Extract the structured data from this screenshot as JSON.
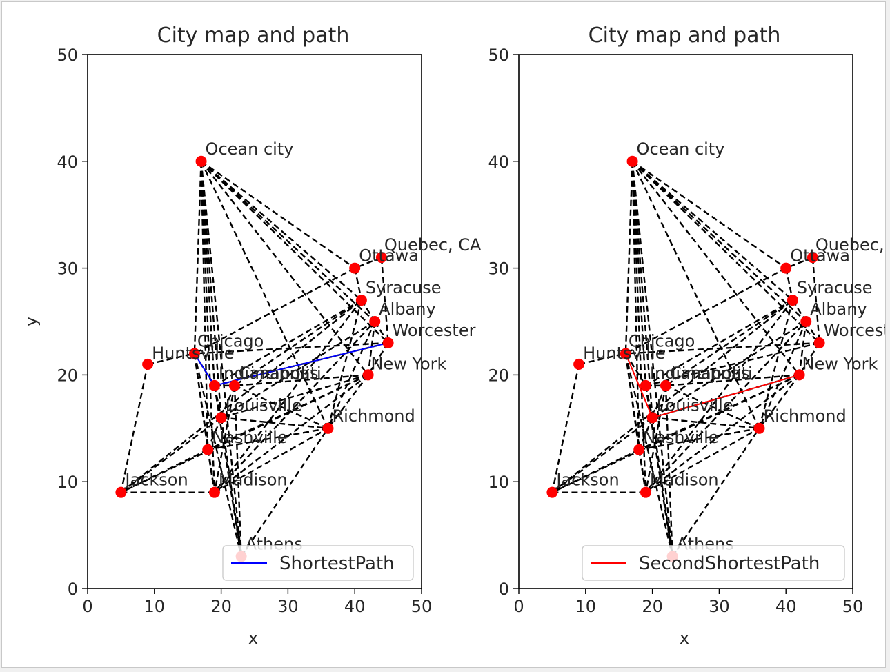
{
  "chart_data": {
    "type": "scatter",
    "cities": [
      {
        "name": "Ocean city",
        "x": 17,
        "y": 40
      },
      {
        "name": "Quebec, CA",
        "x": 44,
        "y": 31
      },
      {
        "name": "Ottawa",
        "x": 40,
        "y": 30
      },
      {
        "name": "Syracuse",
        "x": 41,
        "y": 27
      },
      {
        "name": "Albany",
        "x": 43,
        "y": 25
      },
      {
        "name": "Worcester",
        "x": 45,
        "y": 23
      },
      {
        "name": "New York",
        "x": 42,
        "y": 20
      },
      {
        "name": "Chicago",
        "x": 16,
        "y": 22
      },
      {
        "name": "Huntsville",
        "x": 9,
        "y": 21
      },
      {
        "name": "Indianapolis",
        "x": 19,
        "y": 19
      },
      {
        "name": "Cincinnati",
        "x": 22,
        "y": 19
      },
      {
        "name": "Louisville",
        "x": 20,
        "y": 16
      },
      {
        "name": "Richmond",
        "x": 36,
        "y": 15
      },
      {
        "name": "Nashville",
        "x": 18,
        "y": 13
      },
      {
        "name": "Jackson",
        "x": 5,
        "y": 9
      },
      {
        "name": "Madison",
        "x": 19,
        "y": 9
      },
      {
        "name": "Athens",
        "x": 23,
        "y": 3
      }
    ],
    "edges": [
      [
        "Ocean city",
        "Chicago"
      ],
      [
        "Ocean city",
        "Indianapolis"
      ],
      [
        "Ocean city",
        "Louisville"
      ],
      [
        "Ocean city",
        "Nashville"
      ],
      [
        "Ocean city",
        "Madison"
      ],
      [
        "Ocean city",
        "Ottawa"
      ],
      [
        "Ocean city",
        "Syracuse"
      ],
      [
        "Ocean city",
        "Albany"
      ],
      [
        "Ocean city",
        "Worcester"
      ],
      [
        "Ocean city",
        "New York"
      ],
      [
        "Ocean city",
        "Richmond"
      ],
      [
        "Ocean city",
        "Athens"
      ],
      [
        "Quebec, CA",
        "Ottawa"
      ],
      [
        "Quebec, CA",
        "Worcester"
      ],
      [
        "Ottawa",
        "Syracuse"
      ],
      [
        "Ottawa",
        "Chicago"
      ],
      [
        "Syracuse",
        "Albany"
      ],
      [
        "Syracuse",
        "Indianapolis"
      ],
      [
        "Syracuse",
        "Cincinnati"
      ],
      [
        "Syracuse",
        "Richmond"
      ],
      [
        "Syracuse",
        "Madison"
      ],
      [
        "Albany",
        "Worcester"
      ],
      [
        "Albany",
        "New York"
      ],
      [
        "Albany",
        "Louisville"
      ],
      [
        "Albany",
        "Richmond"
      ],
      [
        "Worcester",
        "Chicago"
      ],
      [
        "Worcester",
        "Indianapolis"
      ],
      [
        "Worcester",
        "New York"
      ],
      [
        "New York",
        "Cincinnati"
      ],
      [
        "New York",
        "Louisville"
      ],
      [
        "New York",
        "Richmond"
      ],
      [
        "New York",
        "Madison"
      ],
      [
        "New York",
        "Jackson"
      ],
      [
        "New York",
        "Nashville"
      ],
      [
        "Huntsville",
        "Chicago"
      ],
      [
        "Huntsville",
        "Jackson"
      ],
      [
        "Chicago",
        "Indianapolis"
      ],
      [
        "Chicago",
        "Nashville"
      ],
      [
        "Chicago",
        "Madison"
      ],
      [
        "Chicago",
        "Athens"
      ],
      [
        "Indianapolis",
        "Cincinnati"
      ],
      [
        "Indianapolis",
        "Louisville"
      ],
      [
        "Indianapolis",
        "Athens"
      ],
      [
        "Cincinnati",
        "Louisville"
      ],
      [
        "Cincinnati",
        "Madison"
      ],
      [
        "Cincinnati",
        "Richmond"
      ],
      [
        "Cincinnati",
        "Athens"
      ],
      [
        "Louisville",
        "Nashville"
      ],
      [
        "Louisville",
        "Jackson"
      ],
      [
        "Louisville",
        "Athens"
      ],
      [
        "Louisville",
        "Richmond"
      ],
      [
        "Nashville",
        "Madison"
      ],
      [
        "Nashville",
        "Jackson"
      ],
      [
        "Nashville",
        "Richmond"
      ],
      [
        "Jackson",
        "Madison"
      ],
      [
        "Jackson",
        "Syracuse"
      ],
      [
        "Madison",
        "Richmond"
      ],
      [
        "Madison",
        "Albany"
      ],
      [
        "Athens",
        "Richmond"
      ]
    ],
    "panels": [
      {
        "title": "City map and path",
        "xlabel": "x",
        "ylabel": "y",
        "xlim": [
          0,
          50
        ],
        "ylim": [
          0,
          50
        ],
        "xticks": [
          "0",
          "10",
          "20",
          "30",
          "40",
          "50"
        ],
        "yticks": [
          "0",
          "10",
          "20",
          "30",
          "40",
          "50"
        ],
        "path_name": "ShortestPath",
        "path_color": "#0000ff",
        "path": [
          "Chicago",
          "Indianapolis",
          "Worcester"
        ]
      },
      {
        "title": "City map and path",
        "xlabel": "x",
        "ylabel": "",
        "xlim": [
          0,
          50
        ],
        "ylim": [
          0,
          50
        ],
        "xticks": [
          "0",
          "10",
          "20",
          "30",
          "40",
          "50"
        ],
        "yticks": [
          "0",
          "10",
          "20",
          "30",
          "40",
          "50"
        ],
        "path_name": "SecondShortestPath",
        "path_color": "#ff0000",
        "path": [
          "Chicago",
          "Louisville",
          "New York"
        ]
      }
    ],
    "marker_color": "#ff0000",
    "edge_color": "#000000",
    "grid": false,
    "legend_position": "lower-right"
  }
}
